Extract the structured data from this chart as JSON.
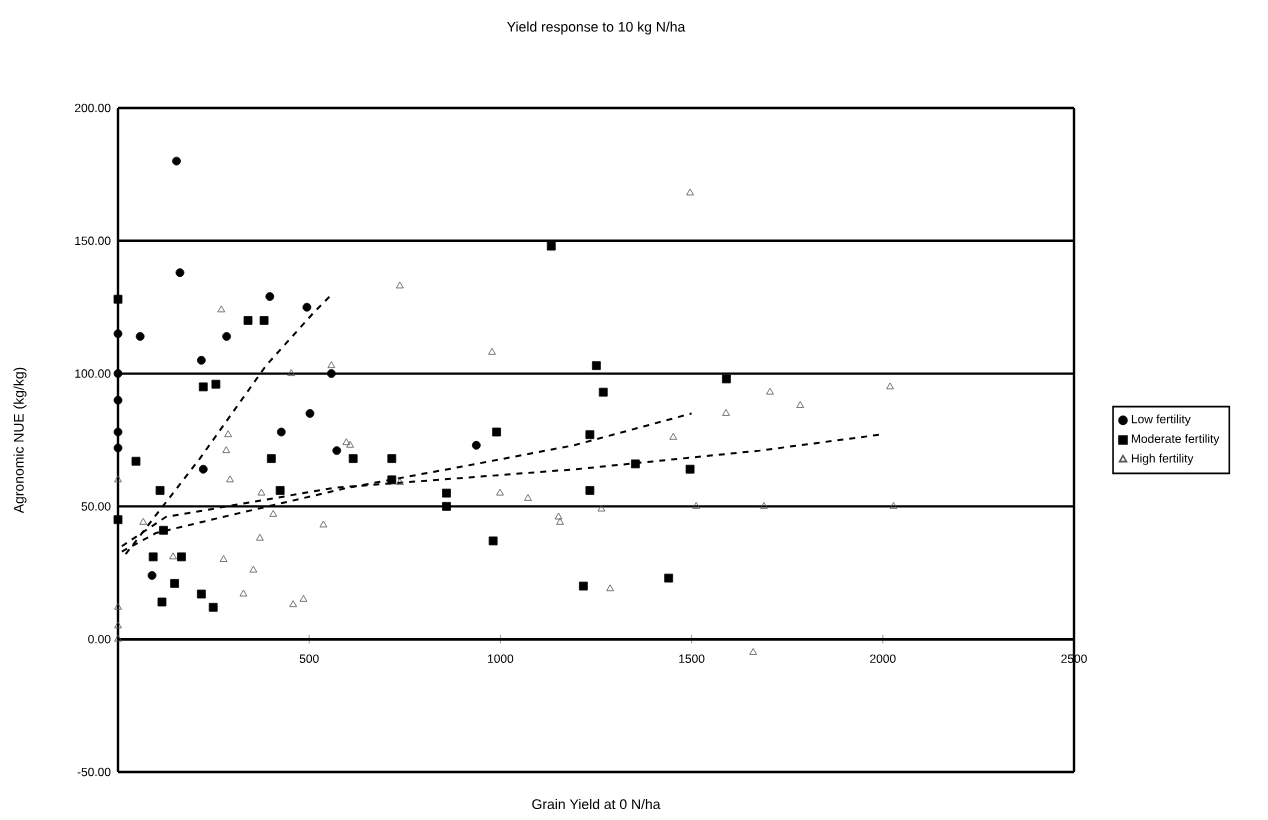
{
  "chart_data": {
    "type": "scatter",
    "title": "Yield response to 10 kg N/ha",
    "xlabel": "Grain Yield at 0 N/ha",
    "ylabel": "Agronomic NUE (kg/kg)",
    "xlim": [
      0,
      2500
    ],
    "ylim": [
      -50,
      200
    ],
    "xticks": [
      500,
      1000,
      1500,
      2000,
      2500
    ],
    "yticks": [
      {
        "value": -50,
        "label": "-50.00"
      },
      {
        "value": 0,
        "label": "0.00"
      },
      {
        "value": 50,
        "label": "50.00"
      },
      {
        "value": 100,
        "label": "100.00"
      },
      {
        "value": 150,
        "label": "150.00"
      },
      {
        "value": 200,
        "label": "200.00"
      }
    ],
    "grid": "y",
    "legend": "right",
    "series": [
      {
        "name": "Low fertility",
        "color": "#000000",
        "marker": "circle",
        "x": [
          0,
          0,
          0,
          0,
          0,
          58,
          89,
          153,
          162,
          218,
          223,
          284,
          397,
          427,
          494,
          502,
          558,
          572,
          937
        ],
        "values": [
          115,
          100,
          90,
          78,
          72,
          114,
          24,
          180,
          138,
          105,
          64,
          114,
          129,
          78,
          125,
          85,
          100,
          71,
          73
        ]
      },
      {
        "name": "Moderate fertility",
        "color": "#000000",
        "marker": "square",
        "x": [
          0,
          0,
          47,
          92,
          110,
          115,
          119,
          148,
          166,
          218,
          223,
          249,
          256,
          340,
          382,
          401,
          424,
          615,
          716,
          716,
          859,
          859,
          981,
          990,
          1133,
          1217,
          1234,
          1234,
          1251,
          1269,
          1353,
          1440,
          1496,
          1591
        ],
        "values": [
          128,
          45,
          67,
          31,
          56,
          14,
          41,
          21,
          31,
          17,
          95,
          12,
          96,
          120,
          120,
          68,
          56,
          68,
          68,
          60,
          55,
          50,
          37,
          78,
          148,
          20,
          56,
          77,
          103,
          93,
          66,
          23,
          64,
          98
        ]
      },
      {
        "name": "High fertility",
        "color": "#555555",
        "marker": "triangle",
        "x": [
          0,
          0,
          0,
          0,
          66,
          144,
          270,
          276,
          283,
          288,
          293,
          328,
          354,
          371,
          375,
          406,
          453,
          458,
          485,
          537,
          558,
          597,
          607,
          737,
          737,
          978,
          999,
          1072,
          1152,
          1156,
          1264,
          1287,
          1452,
          1496,
          1512,
          1590,
          1661,
          1689,
          1705,
          1784,
          2019,
          2028
        ],
        "values": [
          0,
          5,
          12,
          60,
          44,
          31,
          124,
          30,
          71,
          77,
          60,
          17,
          26,
          38,
          55,
          47,
          100,
          13,
          15,
          43,
          103,
          74,
          73,
          133,
          59,
          108,
          55,
          53,
          46,
          44,
          49,
          19,
          76,
          168,
          50,
          85,
          -5,
          50,
          93,
          88,
          95,
          50
        ]
      },
      {
        "type": "line",
        "color": "#000000",
        "line_style": "dashed",
        "marker": "none",
        "x": [
          20,
          214,
          387,
          512,
          560
        ],
        "values": [
          32,
          68,
          103,
          123,
          130
        ]
      },
      {
        "type": "line",
        "color": "#000000",
        "line_style": "dashed",
        "marker": "none",
        "x": [
          10,
          100,
          303,
          600,
          900,
          1192,
          1500
        ],
        "values": [
          33,
          40,
          47,
          57,
          65,
          73,
          85
        ]
      },
      {
        "type": "line",
        "color": "#000000",
        "line_style": "dashed",
        "marker": "none",
        "x": [
          10,
          125,
          565,
          1198,
          1678,
          1992
        ],
        "values": [
          35,
          46,
          57,
          64,
          71,
          77
        ]
      }
    ]
  }
}
